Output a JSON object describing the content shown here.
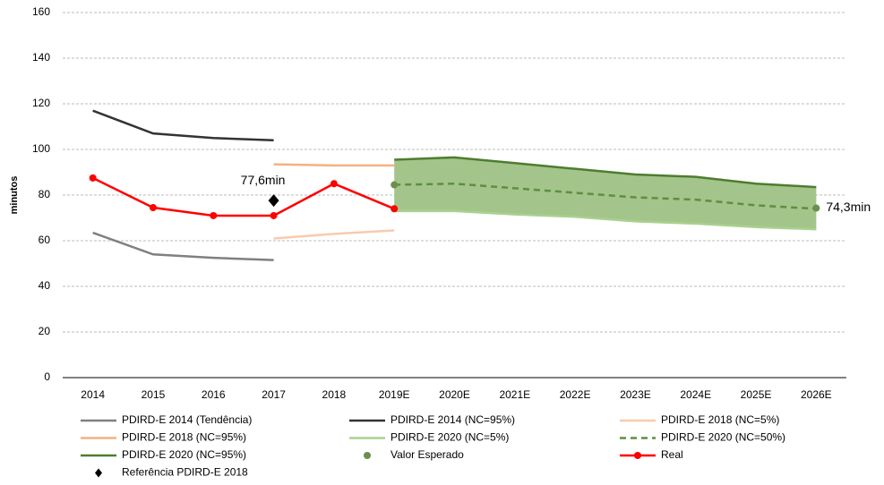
{
  "chart_data": {
    "type": "line",
    "y_label": "minutos",
    "categories": [
      "2014",
      "2015",
      "2016",
      "2017",
      "2018",
      "2019E",
      "2020E",
      "2021E",
      "2022E",
      "2023E",
      "2024E",
      "2025E",
      "2026E"
    ],
    "ylim": [
      0,
      160
    ],
    "yticks": [
      0,
      20,
      40,
      60,
      80,
      100,
      120,
      140,
      160
    ],
    "grid": true,
    "fill_between": [
      4,
      6
    ],
    "fill_color": "#a3c48a",
    "series": [
      {
        "name": "PDIRD-E 2014 (Tendência)",
        "color": "#808080",
        "style": "line",
        "values": [
          63.5,
          54,
          52.5,
          51.5,
          null,
          null,
          null,
          null,
          null,
          null,
          null,
          null,
          null
        ]
      },
      {
        "name": "PDIRD-E 2014 (NC=95%)",
        "color": "#333333",
        "style": "line",
        "values": [
          117,
          107,
          105,
          104,
          null,
          null,
          null,
          null,
          null,
          null,
          null,
          null,
          null
        ]
      },
      {
        "name": "PDIRD-E 2018 (NC=5%)",
        "color": "#f8cbad",
        "style": "line",
        "values": [
          null,
          null,
          null,
          61,
          63,
          64.5,
          null,
          null,
          null,
          null,
          null,
          null,
          null
        ]
      },
      {
        "name": "PDIRD-E 2018 (NC=95%)",
        "color": "#f4b183",
        "style": "line",
        "values": [
          null,
          null,
          null,
          93.5,
          93,
          93,
          null,
          null,
          null,
          null,
          null,
          null,
          null
        ]
      },
      {
        "name": "PDIRD-E 2020 (NC=5%)",
        "color": "#a9d18e",
        "style": "line",
        "values": [
          null,
          null,
          null,
          null,
          null,
          73,
          73,
          71.5,
          70.5,
          68.5,
          67.5,
          66,
          65
        ]
      },
      {
        "name": "PDIRD-E 2020 (NC=50%)",
        "color": "#5e8f3e",
        "style": "dashed",
        "values": [
          null,
          null,
          null,
          null,
          null,
          84.5,
          85,
          83,
          81,
          79,
          78,
          75.5,
          74
        ]
      },
      {
        "name": "PDIRD-E 2020 (NC=95%)",
        "color": "#4e7d2f",
        "style": "line",
        "values": [
          null,
          null,
          null,
          null,
          null,
          95.5,
          96.5,
          94,
          91.5,
          89,
          88,
          85,
          83.5
        ]
      },
      {
        "name": "Valor Esperado",
        "color": "#6a8f4e",
        "style": "marker",
        "values": [
          null,
          null,
          null,
          null,
          null,
          84.5,
          null,
          null,
          null,
          null,
          null,
          null,
          74.3
        ],
        "value_labels": [
          null,
          null,
          null,
          null,
          null,
          null,
          null,
          null,
          null,
          null,
          null,
          null,
          "74,3min"
        ]
      },
      {
        "name": "Real",
        "color": "#ff0000",
        "style": "line-marker",
        "values": [
          87.5,
          74.5,
          71,
          71,
          85,
          74,
          null,
          null,
          null,
          null,
          null,
          null,
          null
        ]
      },
      {
        "name": "Referência PDIRD-E 2018",
        "color": "#000000",
        "style": "diamond",
        "values": [
          null,
          null,
          null,
          77.6,
          null,
          null,
          null,
          null,
          null,
          null,
          null,
          null,
          null
        ],
        "value_labels": [
          null,
          null,
          null,
          "77,6min",
          null,
          null,
          null,
          null,
          null,
          null,
          null,
          null,
          null
        ]
      }
    ]
  }
}
